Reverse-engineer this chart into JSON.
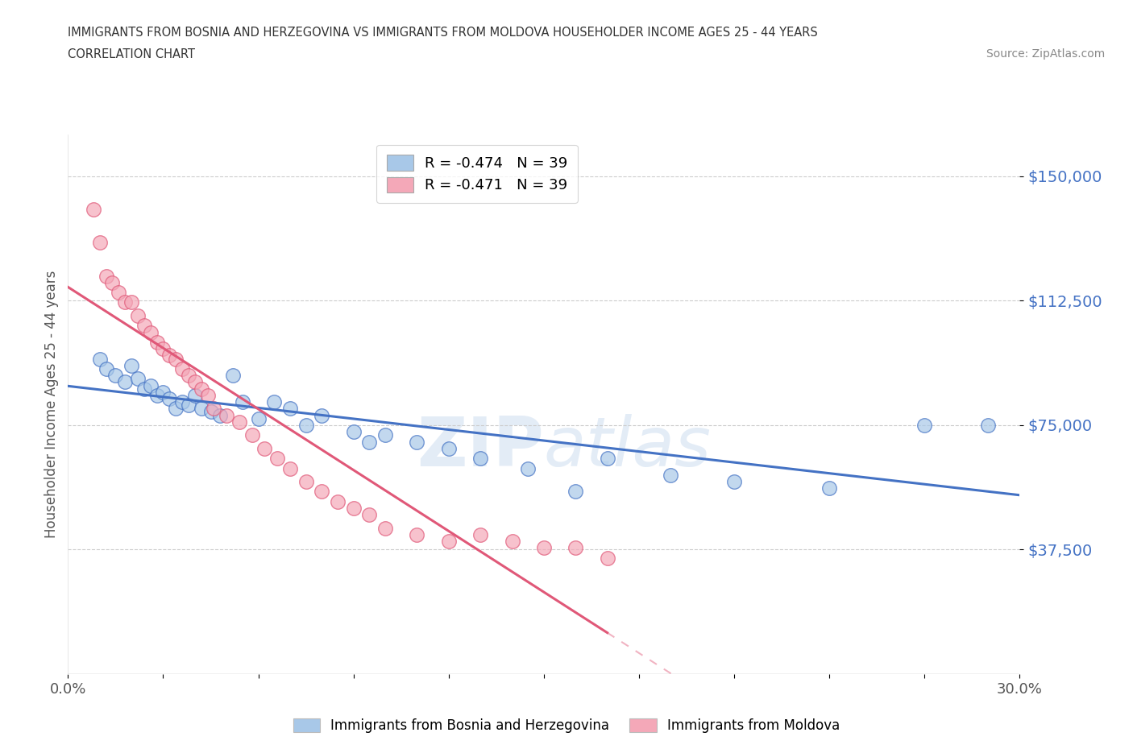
{
  "title_line1": "IMMIGRANTS FROM BOSNIA AND HERZEGOVINA VS IMMIGRANTS FROM MOLDOVA HOUSEHOLDER INCOME AGES 25 - 44 YEARS",
  "title_line2": "CORRELATION CHART",
  "source_text": "Source: ZipAtlas.com",
  "ylabel": "Householder Income Ages 25 - 44 years",
  "xlim": [
    0.0,
    0.3
  ],
  "ylim": [
    0,
    162500
  ],
  "yticks": [
    37500,
    75000,
    112500,
    150000
  ],
  "ytick_labels": [
    "$37,500",
    "$75,000",
    "$112,500",
    "$150,000"
  ],
  "xticks": [
    0.0,
    0.03,
    0.06,
    0.09,
    0.12,
    0.15,
    0.18,
    0.21,
    0.24,
    0.27,
    0.3
  ],
  "xtick_labels_show": [
    "0.0%",
    "",
    "",
    "",
    "",
    "",
    "",
    "",
    "",
    "",
    "30.0%"
  ],
  "watermark_top": "ZIP",
  "watermark_bot": "atlas",
  "R_bosnia": -0.474,
  "N_bosnia": 39,
  "R_moldova": -0.471,
  "N_moldova": 39,
  "color_bosnia": "#a8c8e8",
  "color_moldova": "#f4a8b8",
  "line_color_bosnia": "#4472c4",
  "line_color_moldova": "#e05878",
  "bosnia_x": [
    0.01,
    0.012,
    0.015,
    0.018,
    0.02,
    0.022,
    0.024,
    0.026,
    0.028,
    0.03,
    0.032,
    0.034,
    0.036,
    0.038,
    0.04,
    0.042,
    0.045,
    0.048,
    0.052,
    0.055,
    0.06,
    0.065,
    0.07,
    0.075,
    0.08,
    0.09,
    0.095,
    0.1,
    0.11,
    0.12,
    0.13,
    0.145,
    0.16,
    0.17,
    0.19,
    0.21,
    0.24,
    0.27,
    0.29
  ],
  "bosnia_y": [
    95000,
    92000,
    90000,
    88000,
    93000,
    89000,
    86000,
    87000,
    84000,
    85000,
    83000,
    80000,
    82000,
    81000,
    84000,
    80000,
    79000,
    78000,
    90000,
    82000,
    77000,
    82000,
    80000,
    75000,
    78000,
    73000,
    70000,
    72000,
    70000,
    68000,
    65000,
    62000,
    55000,
    65000,
    60000,
    58000,
    56000,
    75000,
    75000
  ],
  "moldova_x": [
    0.008,
    0.01,
    0.012,
    0.014,
    0.016,
    0.018,
    0.02,
    0.022,
    0.024,
    0.026,
    0.028,
    0.03,
    0.032,
    0.034,
    0.036,
    0.038,
    0.04,
    0.042,
    0.044,
    0.046,
    0.05,
    0.054,
    0.058,
    0.062,
    0.066,
    0.07,
    0.075,
    0.08,
    0.085,
    0.09,
    0.095,
    0.1,
    0.11,
    0.12,
    0.13,
    0.14,
    0.15,
    0.16,
    0.17
  ],
  "moldova_y": [
    140000,
    130000,
    120000,
    118000,
    115000,
    112000,
    112000,
    108000,
    105000,
    103000,
    100000,
    98000,
    96000,
    95000,
    92000,
    90000,
    88000,
    86000,
    84000,
    80000,
    78000,
    76000,
    72000,
    68000,
    65000,
    62000,
    58000,
    55000,
    52000,
    50000,
    48000,
    44000,
    42000,
    40000,
    42000,
    40000,
    38000,
    38000,
    35000
  ]
}
